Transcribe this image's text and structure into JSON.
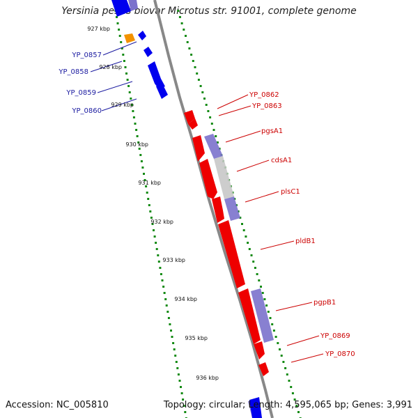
{
  "title": "Yersinia pestis biovar Microtus str. 91001, complete genome",
  "footer": {
    "accession": "Accession: NC_005810",
    "summary": "Topology: circular; Length: 4,595,065 bp; Genes: 3,991"
  },
  "colors": {
    "left_genes": "#0000ee",
    "right_genes": "#ee0000",
    "orange_gene": "#f39200",
    "feature_purple": "#7b72cc",
    "feature_grey": "#c8c8c8",
    "backbone": "#888888",
    "dots": "#138a13",
    "left_label": "#1a1aa0",
    "right_label": "#cc0000"
  },
  "kbp_ticks": [
    "927 kbp",
    "928 kbp",
    "929 kbp",
    "930 kbp",
    "931 kbp",
    "932 kbp",
    "933 kbp",
    "934 kbp",
    "935 kbp",
    "936 kbp"
  ],
  "left_gene_labels": [
    "YP_0857",
    "YP_0858",
    "YP_0859",
    "YP_0860"
  ],
  "right_gene_labels": [
    "YP_0862",
    "YP_0863",
    "pgsA1",
    "cdsA1",
    "plsC1",
    "pldB1",
    "pgpB1",
    "YP_0869",
    "YP_0870"
  ]
}
